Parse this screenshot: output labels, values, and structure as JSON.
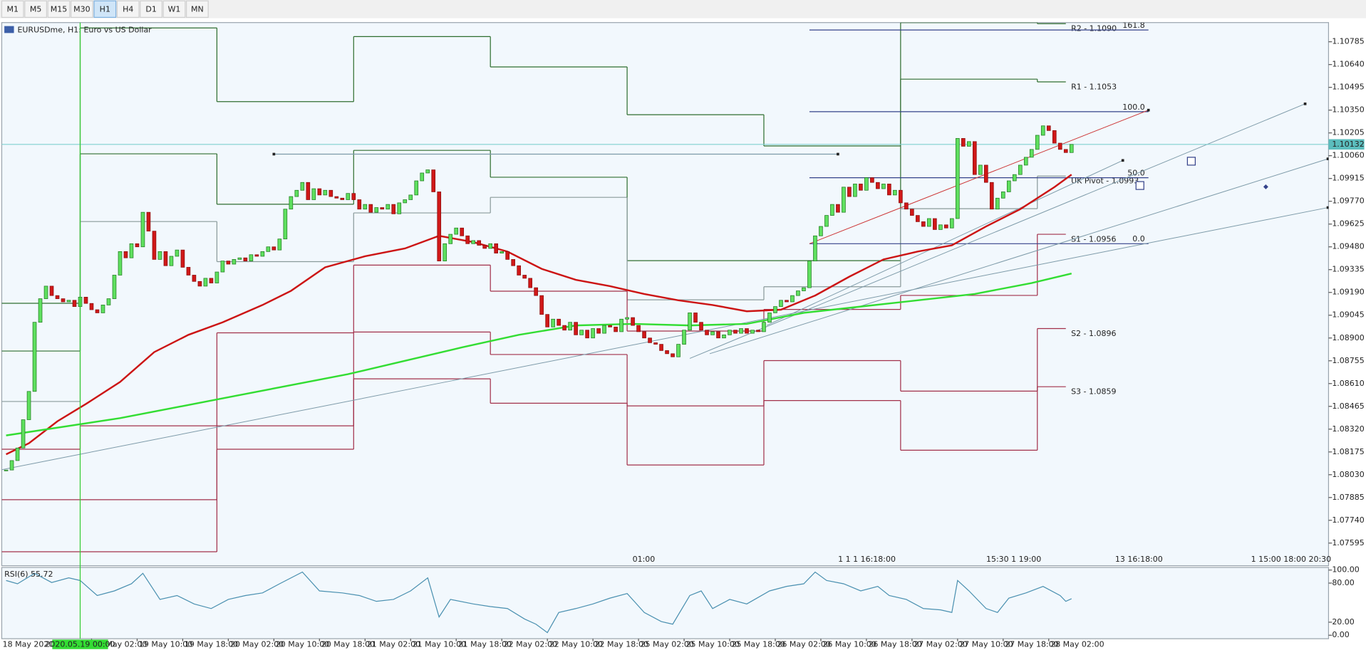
{
  "toolbar": {
    "buttons": [
      "M1",
      "M5",
      "M15",
      "M30",
      "H1",
      "H4",
      "D1",
      "W1",
      "MN"
    ],
    "active": "H1"
  },
  "chart_data": {
    "type": "candlestick",
    "title": "EURUSDme, H1: Euro vs US Dollar",
    "ylim": [
      1.07451,
      1.10907
    ],
    "yticks": [
      1.10785,
      {
        "value": 1.1064,
        "label": "1.10640"
      },
      1.10495,
      {
        "value": 1.1035,
        "label": "1.10350"
      },
      1.10205,
      {
        "value": 1.1006,
        "label": "1.10060"
      },
      1.09915,
      {
        "value": 1.0977,
        "label": "1.09770"
      },
      1.09625,
      {
        "value": 1.0948,
        "label": "1.09480"
      },
      1.09335,
      {
        "value": 1.0919,
        "label": "1.09190"
      },
      1.09045,
      {
        "value": 1.089,
        "label": "1.08900"
      },
      1.08755,
      {
        "value": 1.0861,
        "label": "1.08610"
      },
      1.08465,
      {
        "value": 1.0832,
        "label": "1.08320"
      },
      1.08175,
      {
        "value": 1.0803,
        "label": "1.08030"
      },
      1.07885,
      {
        "value": 1.0774,
        "label": "1.07740"
      },
      1.07595
    ],
    "current_price": 1.10132,
    "xlabels": [
      "19 May 02:00",
      "19 May 10:00",
      "19 May 18:00",
      "20 May 02:00",
      "20 May 10:00",
      "20 May 18:00",
      "21 May 02:00",
      "21 May 10:00",
      "21 May 18:00",
      "22 May 02:00",
      "22 May 10:00",
      "22 May 18:00",
      "25 May 02:00",
      "25 May 10:00",
      "25 May 18:00",
      "26 May 02:00",
      "26 May 10:00",
      "26 May 18:00",
      "27 May 02:00",
      "27 May 10:00",
      "27 May 18:00",
      "28 May 02:00"
    ],
    "first_xlabel": "18 May 2020",
    "crosshair_label": "2020.05.19 00:00",
    "crosshair_x": 13,
    "time_markers": [
      "01:00",
      "1 1 1 16:18:00",
      "15:30 1 19:00",
      "13 16:18:00",
      "1 15:00 18:00 20:30"
    ],
    "candles": {
      "up_color": "#5fe05f",
      "down_color": "#d01818",
      "close": [
        1.0806,
        1.0812,
        1.082,
        1.0838,
        1.0856,
        1.09,
        1.0915,
        1.0923,
        1.0917,
        1.0915,
        1.0913,
        1.0914,
        1.091,
        1.0916,
        1.0912,
        1.0908,
        1.0906,
        1.0911,
        1.0915,
        1.093,
        1.0945,
        1.0941,
        1.095,
        1.0948,
        1.097,
        1.0958,
        1.094,
        1.0945,
        1.0936,
        1.0942,
        1.0946,
        1.0935,
        1.093,
        1.0926,
        1.0923,
        1.0928,
        1.0925,
        1.0932,
        1.0939,
        1.0937,
        1.094,
        1.0941,
        1.0939,
        1.0943,
        1.0942,
        1.0945,
        1.0948,
        1.0946,
        1.0953,
        1.0972,
        1.098,
        1.0984,
        1.0989,
        1.0978,
        1.0985,
        1.0981,
        1.0984,
        1.098,
        1.0979,
        1.0978,
        1.0982,
        1.0978,
        1.0972,
        1.0975,
        1.097,
        1.0973,
        1.0972,
        1.0975,
        1.0969,
        1.0976,
        1.0978,
        1.0981,
        1.099,
        1.0995,
        1.0997,
        1.0983,
        1.0939,
        1.095,
        1.0956,
        1.096,
        1.0955,
        1.095,
        1.0952,
        1.0949,
        1.0947,
        1.095,
        1.0944,
        1.0945,
        1.094,
        1.0936,
        1.093,
        1.0928,
        1.0922,
        1.0917,
        1.0905,
        1.0897,
        1.0902,
        1.0898,
        1.0895,
        1.09,
        1.0892,
        1.0895,
        1.089,
        1.0896,
        1.0893,
        1.0898,
        1.0897,
        1.0894,
        1.0902,
        1.0903,
        1.0898,
        1.0894,
        1.089,
        1.0887,
        1.0886,
        1.0882,
        1.088,
        1.0878,
        1.0886,
        1.0895,
        1.0906,
        1.09,
        1.0895,
        1.0892,
        1.0894,
        1.089,
        1.0892,
        1.0895,
        1.0893,
        1.0896,
        1.0893,
        1.0895,
        1.0894,
        1.09,
        1.0906,
        1.091,
        1.0914,
        1.0913,
        1.0917,
        1.092,
        1.0922,
        1.0939,
        1.0955,
        1.0961,
        1.0968,
        1.0975,
        1.097,
        1.0986,
        1.098,
        1.0988,
        1.0984,
        1.0992,
        1.0989,
        1.0985,
        1.0988,
        1.0981,
        1.0984,
        1.0976,
        1.0972,
        1.0968,
        1.0964,
        1.0961,
        1.0966,
        1.0959,
        1.0962,
        1.096,
        1.0966,
        1.1017,
        1.1012,
        1.1015,
        1.0994,
        1.1,
        1.0989,
        1.0972,
        1.0979,
        1.0983,
        1.099,
        1.0994,
        1.1,
        1.1005,
        1.101,
        1.1019,
        1.1025,
        1.1022,
        1.1014,
        1.101,
        1.1008,
        1.10132
      ]
    },
    "moving_averages": [
      {
        "color": "#cc1414",
        "x": [
          0,
          4,
          9,
          14,
          20,
          26,
          32,
          38,
          45,
          50,
          56,
          63,
          70,
          76,
          82,
          88,
          94,
          100,
          106,
          112,
          118,
          124,
          130,
          136,
          142,
          148,
          154,
          160,
          166,
          172,
          178,
          184,
          187
        ],
        "values": [
          1.0816,
          1.0823,
          1.0837,
          1.0848,
          1.0862,
          1.0881,
          1.0892,
          1.09,
          1.0911,
          1.092,
          1.0935,
          1.0942,
          1.0947,
          1.0955,
          1.0951,
          1.0945,
          1.0934,
          1.0927,
          1.0923,
          1.0918,
          1.0914,
          1.0911,
          1.0907,
          1.0908,
          1.0917,
          1.0929,
          1.094,
          1.0945,
          1.0949,
          1.0961,
          1.0972,
          1.0986,
          1.0994
        ]
      },
      {
        "color": "#33dd33",
        "x": [
          0,
          20,
          40,
          60,
          80,
          90,
          100,
          110,
          120,
          130,
          140,
          150,
          160,
          170,
          180,
          187
        ],
        "values": [
          1.0828,
          1.0839,
          1.0853,
          1.0867,
          1.0884,
          1.0892,
          1.0898,
          1.0899,
          1.0898,
          1.0899,
          1.0906,
          1.091,
          1.0914,
          1.0918,
          1.0925,
          1.0931
        ]
      }
    ],
    "pivots": {
      "colors": [
        "#2f6e2f",
        "#2f6e2f",
        "#8a9a9a",
        "#a2304a",
        "#a2304a",
        "#a2304a"
      ],
      "bounds": [
        0,
        13,
        37,
        61,
        85,
        109,
        133,
        157,
        181,
        186
      ],
      "segments": [
        [
          1.09121,
          1.08817,
          1.08496,
          1.08192,
          1.07871,
          1.0754
        ],
        [
          1.10873,
          1.10072,
          1.09641,
          1.08341,
          1.07871,
          1.0754
        ],
        [
          1.10404,
          1.09751,
          1.09386,
          1.08933,
          1.08341,
          1.08192
        ],
        [
          1.10818,
          1.10094,
          1.09696,
          1.09364,
          1.08938,
          1.0864
        ],
        [
          1.10625,
          1.09923,
          1.09795,
          1.09198,
          1.08795,
          1.08485
        ],
        [
          1.10321,
          1.09392,
          1.09143,
          1.08944,
          1.08468,
          1.08092
        ],
        [
          1.10122,
          1.09392,
          1.09226,
          1.09082,
          1.08756,
          1.08502
        ],
        [
          1.10907,
          1.10547,
          1.09723,
          1.09171,
          1.08562,
          1.08186
        ],
        [
          1.109,
          1.1053,
          1.0993,
          1.0956,
          1.0896,
          1.0859
        ]
      ],
      "labels": [
        "R2 - 1.1090",
        "R1 - 1.1053",
        "UK Pivot - 1.0993",
        "S1 - 1.0956",
        "S2 - 1.0896",
        "S3 - 1.0859"
      ]
    },
    "fibonacci": {
      "color": "#34428a",
      "x": [
        141,
        200.5
      ],
      "levels": [
        {
          "label": "161.8",
          "price": 1.1086
        },
        {
          "label": "100.0",
          "price": 1.1034
        },
        {
          "label": "50.0",
          "price": 1.0992
        },
        {
          "label": "0.0",
          "price": 1.095
        }
      ]
    },
    "trendlines": [
      {
        "color": "#7d9aa8",
        "x": [
          -1,
          232
        ],
        "y": [
          1.0806,
          1.0973
        ]
      },
      {
        "color": "#7d9aa8",
        "x": [
          120,
          228
        ],
        "y": [
          1.0877,
          1.1039
        ]
      },
      {
        "color": "#7d9aa8",
        "x": [
          123.5,
          232
        ],
        "y": [
          1.088,
          1.1004
        ]
      },
      {
        "color": "#7d9aa8",
        "x": [
          133.5,
          196
        ],
        "y": [
          1.0898,
          1.1003
        ]
      },
      {
        "color": "#cc3333",
        "x": [
          141,
          200.5
        ],
        "y": [
          1.095,
          1.1035
        ]
      }
    ],
    "hline": {
      "x": [
        47,
        146
      ],
      "price": 1.1007
    },
    "rsi": {
      "label": "RSI(6) 55.72",
      "color": "#4a90b0",
      "ylim": [
        0,
        100
      ],
      "yticks": [
        {
          "value": 100,
          "label": "100.00"
        },
        {
          "value": 80,
          "label": "80.00"
        },
        {
          "value": 20,
          "label": "20.00"
        },
        {
          "value": 0,
          "label": "0.00"
        }
      ],
      "x": [
        0,
        2,
        5,
        8,
        11,
        13,
        16,
        19,
        22,
        24,
        27,
        30,
        33,
        36,
        39,
        42,
        45,
        48,
        52,
        55,
        59,
        62,
        65,
        68,
        71,
        74,
        76,
        78,
        82,
        85,
        88,
        91,
        93,
        95,
        97,
        100,
        103,
        106,
        109,
        112,
        115,
        117,
        120,
        122,
        124,
        127,
        130,
        134,
        137,
        140,
        142,
        144,
        147,
        150,
        153,
        155,
        158,
        161,
        164,
        166,
        167,
        169,
        172,
        174,
        176,
        179,
        182,
        185,
        186,
        187
      ],
      "values": [
        84,
        79,
        95,
        81,
        88,
        84,
        61,
        68,
        79,
        95,
        55,
        61,
        48,
        41,
        55,
        61,
        65,
        79,
        97,
        68,
        65,
        61,
        52,
        55,
        68,
        88,
        28,
        55,
        48,
        44,
        41,
        25,
        17,
        4,
        35,
        41,
        48,
        57,
        64,
        35,
        21,
        17,
        61,
        68,
        41,
        55,
        48,
        68,
        75,
        79,
        97,
        84,
        79,
        68,
        75,
        61,
        55,
        41,
        39,
        35,
        84,
        68,
        41,
        35,
        57,
        65,
        75,
        61,
        52,
        56
      ]
    }
  }
}
